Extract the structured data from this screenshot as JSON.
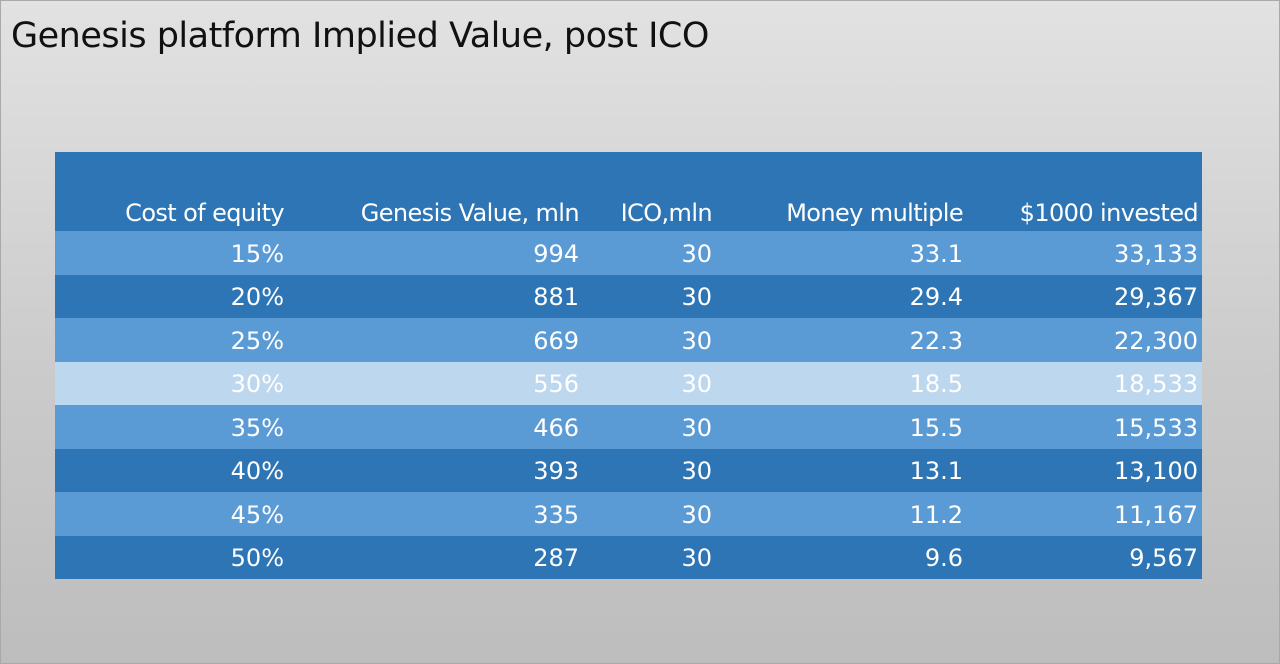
{
  "title": "Genesis platform Implied Value, post ICO",
  "table": {
    "headers": [
      "Cost of equity",
      "Genesis Value, mln",
      "ICO,mln",
      "Money multiple",
      "$1000 invested"
    ],
    "rows": [
      {
        "cost_of_equity": "15%",
        "genesis_value": "994",
        "ico": "30",
        "money_multiple": "33.1",
        "invested_1000": "33,133",
        "band": "light"
      },
      {
        "cost_of_equity": "20%",
        "genesis_value": "881",
        "ico": "30",
        "money_multiple": "29.4",
        "invested_1000": "29,367",
        "band": "dark"
      },
      {
        "cost_of_equity": "25%",
        "genesis_value": "669",
        "ico": "30",
        "money_multiple": "22.3",
        "invested_1000": "22,300",
        "band": "light"
      },
      {
        "cost_of_equity": "30%",
        "genesis_value": "556",
        "ico": "30",
        "money_multiple": "18.5",
        "invested_1000": "18,533",
        "band": "highlight"
      },
      {
        "cost_of_equity": "35%",
        "genesis_value": "466",
        "ico": "30",
        "money_multiple": "15.5",
        "invested_1000": "15,533",
        "band": "light"
      },
      {
        "cost_of_equity": "40%",
        "genesis_value": "393",
        "ico": "30",
        "money_multiple": "13.1",
        "invested_1000": "13,100",
        "band": "dark"
      },
      {
        "cost_of_equity": "45%",
        "genesis_value": "335",
        "ico": "30",
        "money_multiple": "11.2",
        "invested_1000": "11,167",
        "band": "light"
      },
      {
        "cost_of_equity": "50%",
        "genesis_value": "287",
        "ico": "30",
        "money_multiple": "9.6",
        "invested_1000": "9,567",
        "band": "dark"
      }
    ]
  },
  "colors": {
    "header_bg": "#2e75b6",
    "band_light": "#5b9bd5",
    "band_dark": "#2e75b6",
    "band_highlight": "#bdd7ee",
    "text": "#ffffff"
  }
}
